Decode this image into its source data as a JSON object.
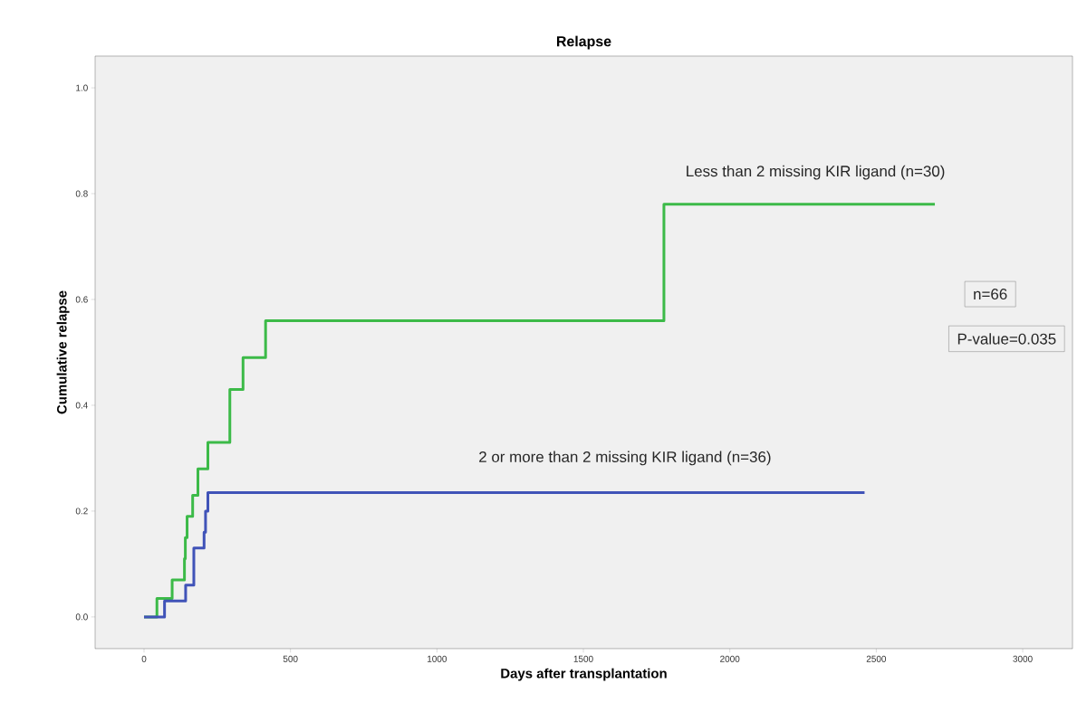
{
  "chart_data": {
    "type": "step",
    "title": "Relapse",
    "xlabel": "Days after transplantation",
    "ylabel": "Cumulative relapse",
    "xlim": [
      -167,
      3170
    ],
    "ylim": [
      -0.06,
      1.06
    ],
    "xticks": [
      0,
      500,
      1000,
      1500,
      2000,
      2500,
      3000
    ],
    "yticks": [
      {
        "value": 0,
        "label": "0.0"
      },
      {
        "value": 0.2,
        "label": "0.2"
      },
      {
        "value": 0.4,
        "label": "0.4"
      },
      {
        "value": 0.6,
        "label": "0.6"
      },
      {
        "value": 0.8,
        "label": "0.8"
      },
      {
        "value": 1.0,
        "label": "1.0"
      }
    ],
    "series": [
      {
        "name": "Less than 2 missing KIR ligand (n=30)",
        "color": "#3cba48",
        "x": [
          0,
          44,
          96,
          138,
          141,
          147,
          166,
          184,
          218,
          293,
          338,
          415,
          1775,
          2700
        ],
        "values": [
          0,
          0.035,
          0.07,
          0.11,
          0.15,
          0.19,
          0.23,
          0.28,
          0.33,
          0.43,
          0.49,
          0.56,
          0.78,
          0.78
        ]
      },
      {
        "name": "2 or more than 2 missing KIR ligand (n=36)",
        "color": "#4053b8",
        "x": [
          0,
          70,
          142,
          170,
          205,
          210,
          218,
          2460
        ],
        "values": [
          0,
          0.03,
          0.06,
          0.13,
          0.16,
          0.2,
          0.235,
          0.235
        ]
      }
    ],
    "annotations": [
      "n=66",
      "P-value=0.035"
    ],
    "grid": false
  }
}
